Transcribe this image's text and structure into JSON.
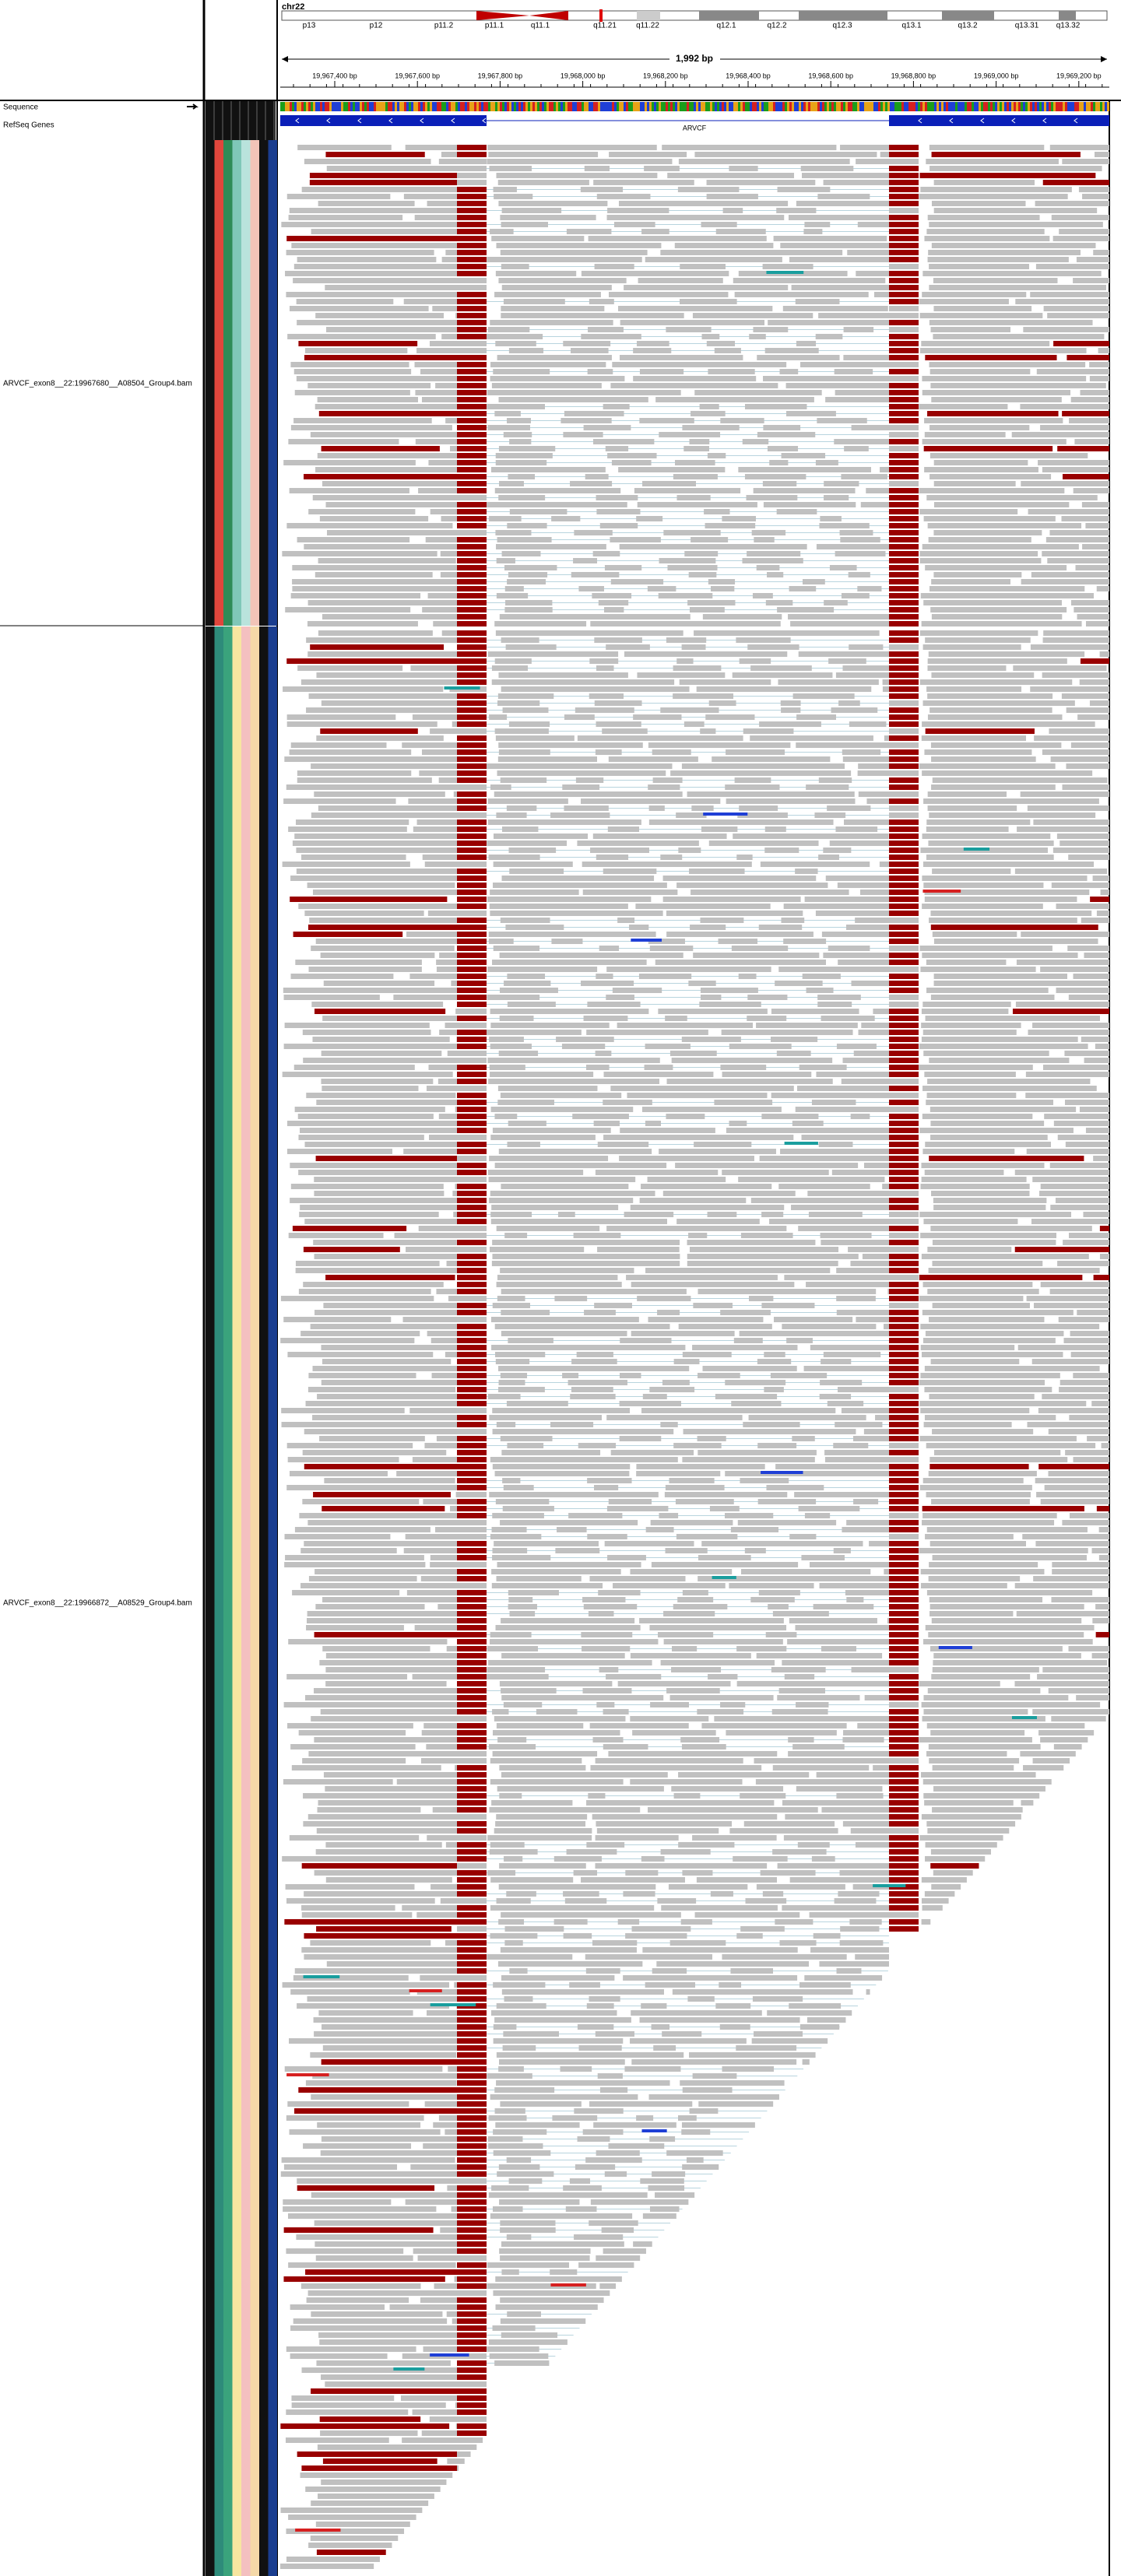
{
  "header": {
    "chromosome": "chr22",
    "cytobands": [
      "p13",
      "p12",
      "p11.2",
      "p11.1",
      "q11.1",
      "q11.21",
      "q11.22",
      "q12.1",
      "q12.2",
      "q12.3",
      "q13.1",
      "q13.2",
      "q13.31",
      "q13.32"
    ],
    "span": "1,992 bp",
    "ruler_ticks": [
      "19,967,400 bp",
      "19,967,600 bp",
      "19,967,800 bp",
      "19,968,000 bp",
      "19,968,200 bp",
      "19,968,400 bp",
      "19,968,600 bp",
      "19,968,800 bp",
      "19,969,000 bp",
      "19,969,200 bp"
    ]
  },
  "tracks": {
    "sequence": "Sequence",
    "refseq": "RefSeq Genes",
    "gene": "ARVCF",
    "alignments": [
      "ARVCF_exon8__22:19967680__A08504_Group4.bam",
      "ARVCF_exon8__22:19966872__A08529_Group4.bam"
    ]
  }
}
